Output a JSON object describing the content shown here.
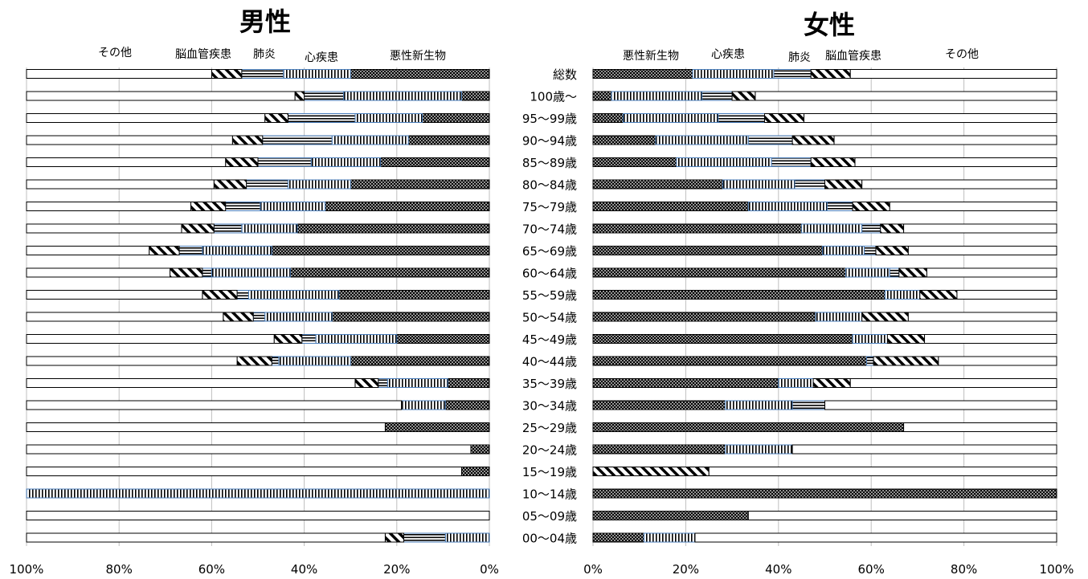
{
  "categories": [
    "総数",
    "100歳～",
    "95～99歳",
    "90～94歳",
    "85～89歳",
    "80～84歳",
    "75～79歳",
    "70～74歳",
    "65～69歳",
    "60～64歳",
    "55～59歳",
    "50～54歳",
    "45～49歳",
    "40～44歳",
    "35～39歳",
    "30～34歳",
    "25～29歳",
    "20～24歳",
    "15～19歳",
    "10～14歳",
    "05～09歳",
    "00～04歳"
  ],
  "chart_data": [
    {
      "type": "bar",
      "orientation": "horizontal",
      "stacked": "percent",
      "direction": "right-to-left",
      "title": "男性",
      "xlim": [
        0,
        100
      ],
      "x_ticks": [
        "100%",
        "80%",
        "60%",
        "40%",
        "20%",
        "0%"
      ],
      "grid": true,
      "legend_position": "top",
      "series": [
        {
          "name": "悪性新生物",
          "values": [
            30,
            6,
            14.5,
            17.5,
            23.5,
            30,
            35.5,
            41.5,
            47,
            43,
            32.5,
            34,
            20,
            30,
            9,
            9.5,
            22.5,
            4,
            6,
            0,
            0,
            0
          ]
        },
        {
          "name": "心疾患",
          "values": [
            14.5,
            25.5,
            14.5,
            16.5,
            15,
            13.5,
            14,
            12,
            15,
            17,
            19.5,
            14.5,
            17.5,
            15.5,
            13,
            9.5,
            0,
            0,
            0,
            100,
            0,
            9.5
          ]
        },
        {
          "name": "肺炎",
          "values": [
            9,
            8.5,
            14.5,
            15,
            11.5,
            9,
            7.5,
            6,
            5,
            2,
            2.5,
            2.5,
            3,
            1.5,
            2,
            0,
            0,
            0,
            0,
            0,
            0,
            9
          ]
        },
        {
          "name": "脳血管疾患",
          "values": [
            6.5,
            2,
            5,
            6.5,
            7,
            7,
            7.5,
            7,
            6.5,
            7,
            7.5,
            6.5,
            6,
            7.5,
            5,
            0,
            0,
            0,
            0,
            0,
            0,
            4
          ]
        },
        {
          "name": "その他",
          "values": [
            40,
            58,
            51.5,
            44.5,
            43,
            40.5,
            35.5,
            33.5,
            26.5,
            31,
            38,
            42.5,
            53.5,
            45.5,
            71,
            81,
            77.5,
            96,
            94,
            0,
            100,
            77.5
          ]
        }
      ]
    },
    {
      "type": "bar",
      "orientation": "horizontal",
      "stacked": "percent",
      "direction": "left-to-right",
      "title": "女性",
      "xlim": [
        0,
        100
      ],
      "x_ticks": [
        "0%",
        "20%",
        "40%",
        "60%",
        "80%",
        "100%"
      ],
      "grid": true,
      "legend_position": "top",
      "series": [
        {
          "name": "悪性新生物",
          "values": [
            21.5,
            4,
            6.5,
            13.5,
            18,
            28,
            33.5,
            45,
            49.5,
            54.5,
            63,
            48,
            56,
            59,
            40,
            28.5,
            67,
            28.5,
            0,
            100,
            33.5,
            11
          ]
        },
        {
          "name": "心疾患",
          "values": [
            17.5,
            19.5,
            20.5,
            20,
            20.5,
            15.5,
            17,
            13,
            9,
            9.5,
            7.5,
            10,
            7.5,
            0,
            7.5,
            14.5,
            0,
            14.5,
            0,
            0,
            0,
            11
          ]
        },
        {
          "name": "肺炎",
          "values": [
            8,
            6.5,
            10,
            9.5,
            8.5,
            6.5,
            5.5,
            4,
            2.5,
            2,
            0,
            0,
            0,
            1.5,
            0,
            7,
            0,
            0,
            0,
            0,
            0,
            0
          ]
        },
        {
          "name": "脳血管疾患",
          "values": [
            8.5,
            5,
            8.5,
            9,
            9.5,
            8,
            8,
            5,
            7,
            6,
            8,
            10,
            8,
            14,
            8,
            0,
            0,
            0,
            25,
            0,
            0,
            0
          ]
        },
        {
          "name": "その他",
          "values": [
            44.5,
            65,
            54.5,
            48,
            43.5,
            42,
            36,
            33,
            32,
            28,
            21.5,
            32,
            28.5,
            25.5,
            44.5,
            50,
            33,
            57,
            75,
            0,
            66.5,
            78
          ]
        }
      ]
    }
  ]
}
